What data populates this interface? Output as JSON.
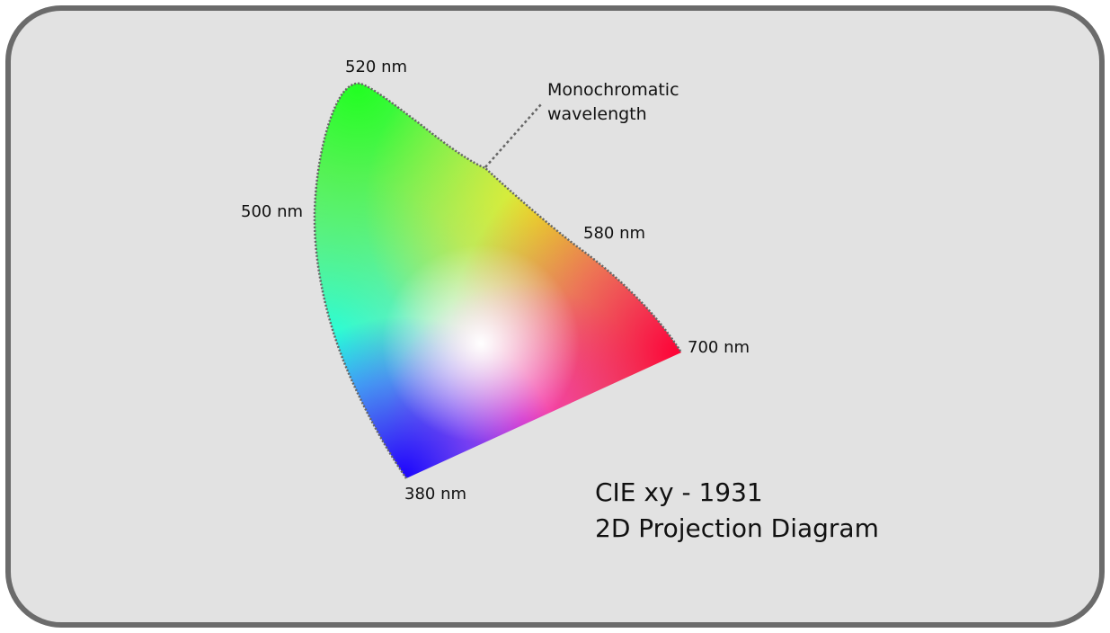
{
  "wavelength_labels": {
    "nm520": "520 nm",
    "nm500": "500 nm",
    "nm580": "580 nm",
    "nm700": "700 nm",
    "nm380": "380 nm"
  },
  "callout": {
    "line1": "Monochromatic",
    "line2": "wavelength"
  },
  "title": {
    "line1": "CIE xy - 1931",
    "line2": "2D Projection Diagram"
  },
  "colors": {
    "background": "#e2e2e2",
    "frame_border": "#6b6b6b",
    "green_corner": "#22ff22",
    "red_corner": "#ff0033",
    "blue_corner": "#1a00ff",
    "cyan_edge": "#22ffff",
    "white_point": "#ffffff",
    "outline": "#666666"
  }
}
